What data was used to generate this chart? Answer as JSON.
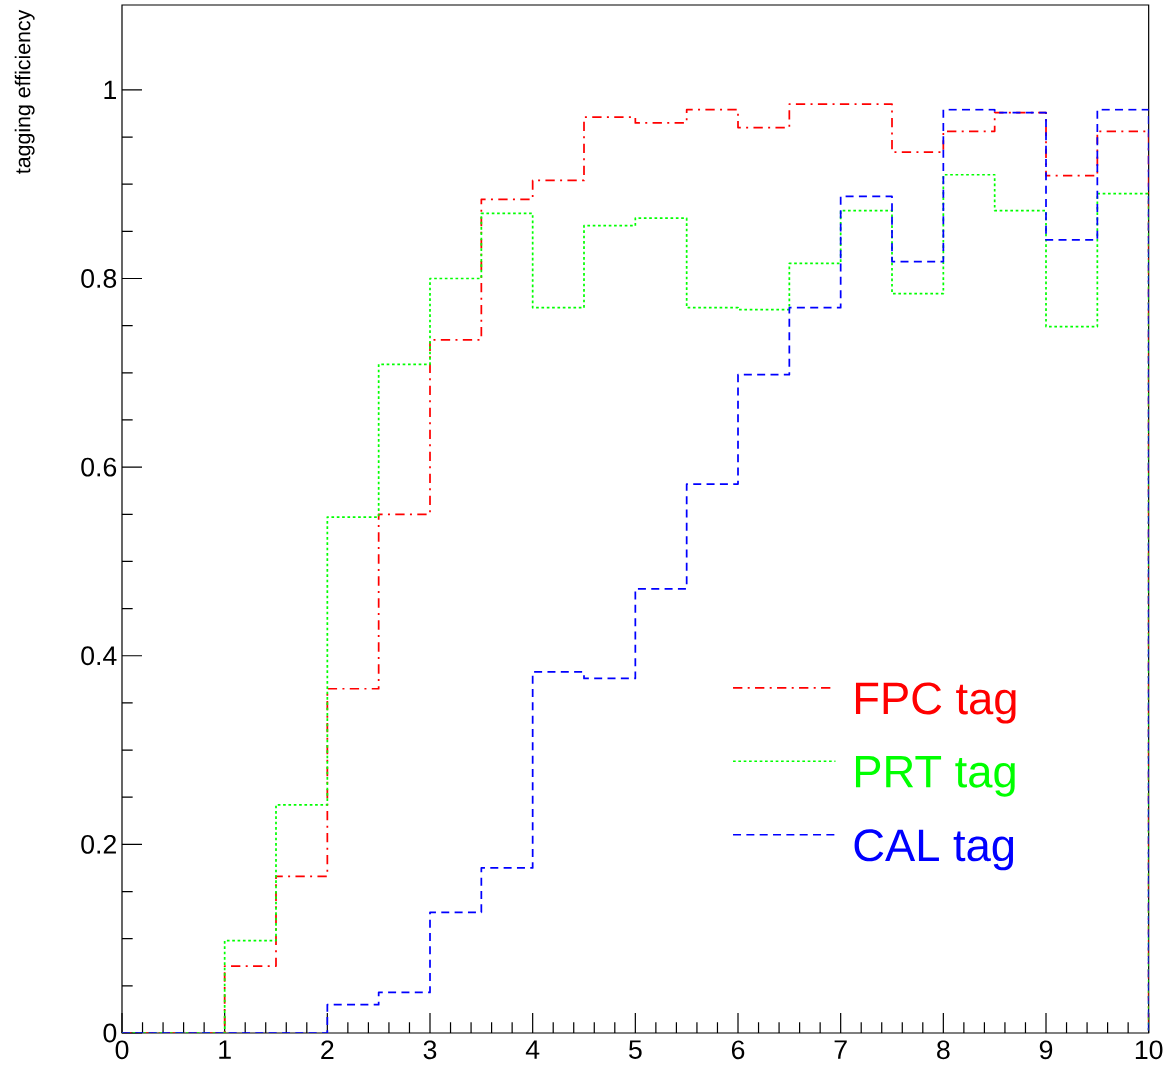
{
  "chart_data": {
    "type": "histogram",
    "ylabel": "tagging efficiency",
    "bins": [
      0,
      0.5,
      1,
      1.5,
      2,
      2.5,
      3,
      3.5,
      4,
      4.5,
      5,
      5.5,
      6,
      6.5,
      7,
      7.5,
      8,
      8.5,
      9,
      9.5,
      10
    ],
    "series": [
      {
        "name": "FPC tag",
        "color": "#ff0000",
        "line_style": "dashdot",
        "values": [
          0,
          0,
          0.071,
          0.166,
          0.365,
          0.55,
          0.735,
          0.884,
          0.904,
          0.971,
          0.965,
          0.979,
          0.96,
          0.985,
          0.985,
          0.934,
          0.956,
          0.976,
          0.909,
          0.956
        ]
      },
      {
        "name": "PRT tag",
        "color": "#00ff00",
        "line_style": "dotted",
        "values": [
          0,
          0,
          0.098,
          0.242,
          0.547,
          0.709,
          0.8,
          0.869,
          0.769,
          0.856,
          0.864,
          0.769,
          0.767,
          0.816,
          0.872,
          0.784,
          0.91,
          0.872,
          0.749,
          0.89
        ]
      },
      {
        "name": "CAL tag",
        "color": "#0000ff",
        "line_style": "dashed",
        "values": [
          0,
          0,
          0,
          0,
          0.03,
          0.043,
          0.128,
          0.175,
          0.383,
          0.376,
          0.471,
          0.582,
          0.698,
          0.769,
          0.887,
          0.818,
          0.979,
          0.976,
          0.841,
          0.979
        ]
      }
    ],
    "xlim": [
      0,
      10
    ],
    "ylim": [
      0,
      1.09
    ],
    "xticks": [
      0,
      1,
      2,
      3,
      4,
      5,
      6,
      7,
      8,
      9,
      10
    ],
    "yticks": [
      0,
      0.2,
      0.4,
      0.6,
      0.8,
      1
    ],
    "legend": "bottom right",
    "grid": false
  }
}
